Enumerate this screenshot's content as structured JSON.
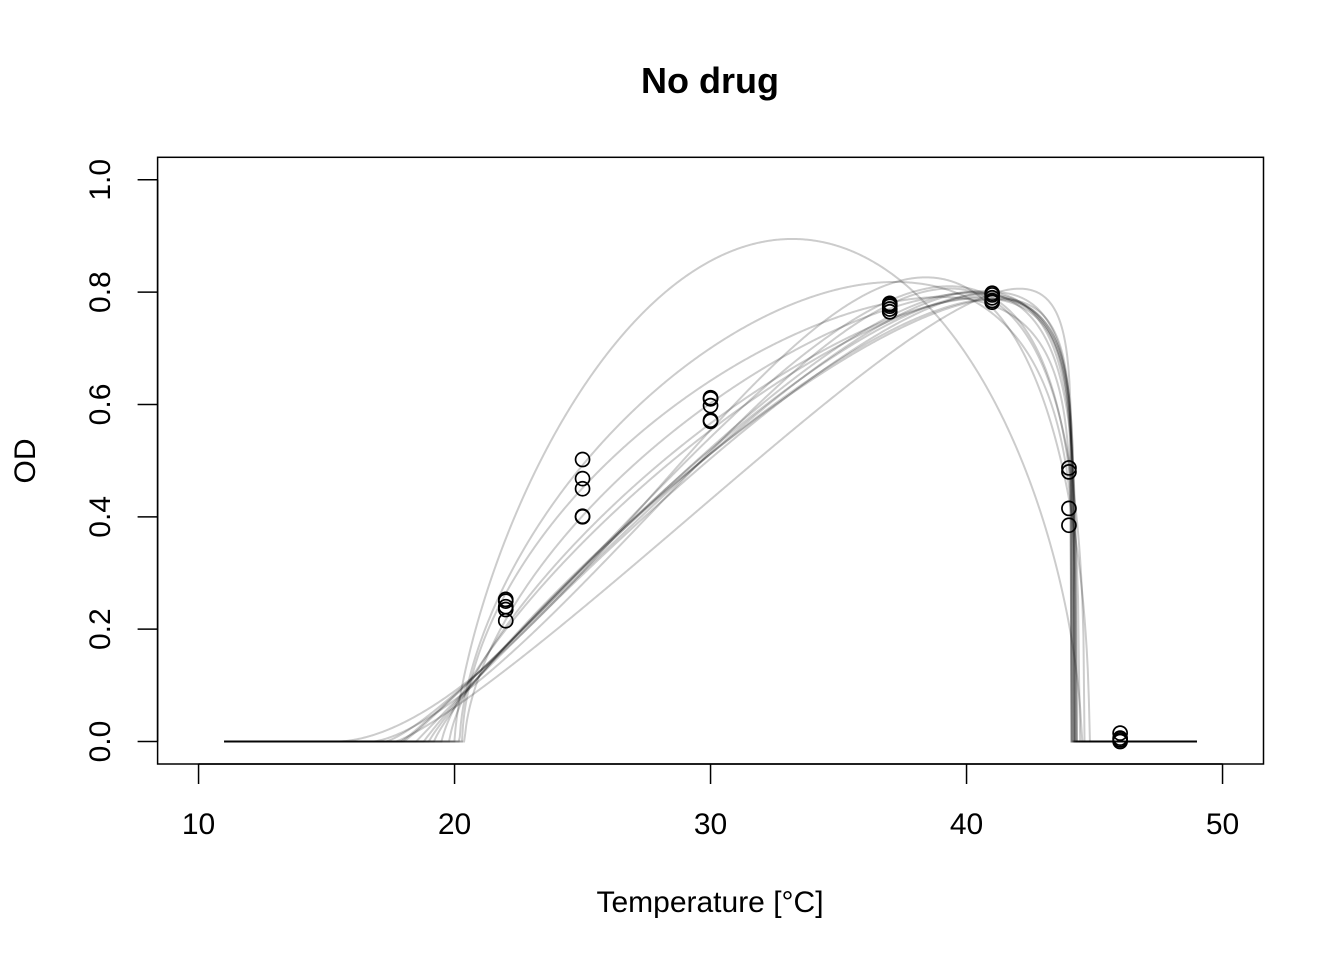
{
  "chart_data": {
    "type": "scatter",
    "title": "No drug",
    "xlabel": "Temperature [°C]",
    "ylabel": "OD",
    "xlim": [
      8.4,
      51.6
    ],
    "ylim": [
      -0.04,
      1.04
    ],
    "x_ticks": [
      10,
      20,
      30,
      40,
      50
    ],
    "x_tick_labels": [
      "10",
      "20",
      "30",
      "40",
      "50"
    ],
    "y_ticks": [
      0.0,
      0.2,
      0.4,
      0.6,
      0.8,
      1.0
    ],
    "y_tick_labels": [
      "0.0",
      "0.2",
      "0.4",
      "0.6",
      "0.8",
      "1.0"
    ],
    "grid": false,
    "legend": "none",
    "points": {
      "x": [
        22,
        22,
        22,
        22,
        22,
        25,
        25,
        25,
        25,
        25,
        30,
        30,
        30,
        30,
        30,
        37,
        37,
        37,
        37,
        37,
        41,
        41,
        41,
        41,
        41,
        44,
        44,
        44,
        44,
        46,
        46,
        46,
        46
      ],
      "y": [
        0.215,
        0.235,
        0.24,
        0.25,
        0.253,
        0.4,
        0.401,
        0.45,
        0.468,
        0.502,
        0.57,
        0.572,
        0.598,
        0.61,
        0.612,
        0.765,
        0.77,
        0.775,
        0.778,
        0.78,
        0.782,
        0.785,
        0.79,
        0.795,
        0.798,
        0.385,
        0.415,
        0.48,
        0.487,
        0.0,
        0.003,
        0.006,
        0.015
      ]
    },
    "fit_curves": [
      {
        "tmin": 20.3,
        "tmax": 44.1,
        "topt": 40.0,
        "ymax": 0.788,
        "p": 0.55,
        "q": 0.15
      },
      {
        "tmin": 19.5,
        "tmax": 44.15,
        "topt": 40.5,
        "ymax": 0.792,
        "p": 0.75,
        "q": 0.12
      },
      {
        "tmin": 18.5,
        "tmax": 44.2,
        "topt": 40.2,
        "ymax": 0.796,
        "p": 1.0,
        "q": 0.14
      },
      {
        "tmin": 17.7,
        "tmax": 44.1,
        "topt": 40.6,
        "ymax": 0.79,
        "p": 1.2,
        "q": 0.1
      },
      {
        "tmin": 18.0,
        "tmax": 44.3,
        "topt": 40.0,
        "ymax": 0.8,
        "p": 1.1,
        "q": 0.2
      },
      {
        "tmin": 19.0,
        "tmax": 44.2,
        "topt": 40.3,
        "ymax": 0.785,
        "p": 0.9,
        "q": 0.13
      },
      {
        "tmin": 17.3,
        "tmax": 44.4,
        "topt": 39.6,
        "ymax": 0.81,
        "p": 1.3,
        "q": 0.3
      },
      {
        "tmin": 15.4,
        "tmax": 44.8,
        "topt": 39.2,
        "ymax": 0.822,
        "p": 1.8,
        "q": 0.5
      },
      {
        "tmin": 20.0,
        "tmax": 44.5,
        "topt": 38.5,
        "ymax": 0.775,
        "p": 0.7,
        "q": 0.6
      },
      {
        "tmin": 16.8,
        "tmax": 44.6,
        "topt": 39.8,
        "ymax": 0.805,
        "p": 1.5,
        "q": 0.35
      },
      {
        "tmin": 20.4,
        "tmax": 44.15,
        "topt": 40.2,
        "ymax": 0.798,
        "p": 0.6,
        "q": 0.12
      },
      {
        "tmin": 18.8,
        "tmax": 44.2,
        "topt": 40.1,
        "ymax": 0.794,
        "p": 0.95,
        "q": 0.15
      },
      {
        "tmin": 19.8,
        "tmax": 44.1,
        "topt": 40.4,
        "ymax": 0.789,
        "p": 0.7,
        "q": 0.12
      },
      {
        "tmin": 17.9,
        "tmax": 44.25,
        "topt": 40.0,
        "ymax": 0.8,
        "p": 1.1,
        "q": 0.18
      },
      {
        "tmin": 20.2,
        "tmax": 44.3,
        "topt": 39.8,
        "ymax": 0.795,
        "p": 0.6,
        "q": 0.25
      },
      {
        "tmin": 19.2,
        "tmax": 44.12,
        "topt": 40.6,
        "ymax": 0.786,
        "p": 0.85,
        "q": 0.11
      }
    ],
    "fit_range": [
      11,
      49
    ],
    "colors": {
      "points": "#000000",
      "fit_lines": "#000000",
      "axes": "#000000"
    }
  }
}
